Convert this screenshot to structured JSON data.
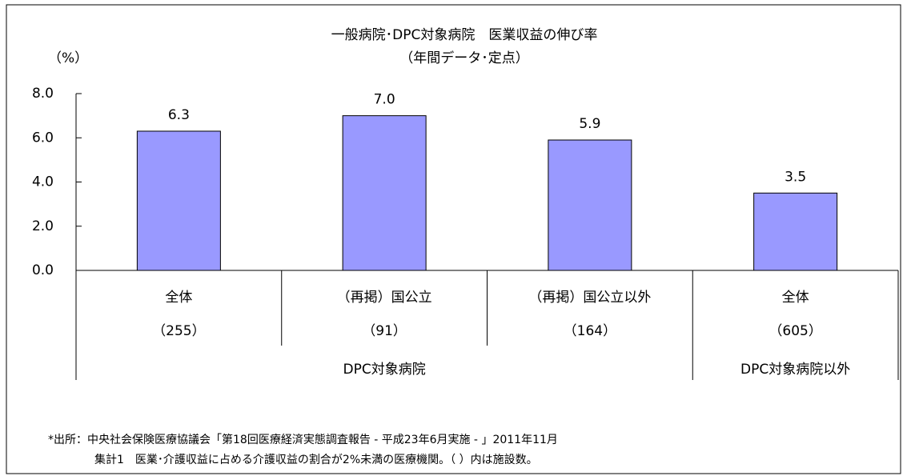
{
  "chart_data": {
    "type": "bar",
    "title": "一般病院･DPC対象病院　医業収益の伸び率",
    "subtitle": "（年間データ･定点）",
    "y_label": "（%）",
    "categories": [
      "全体",
      "（再掲）国公立",
      "（再掲）国公立以外",
      "全体"
    ],
    "counts": [
      "（255）",
      "（91）",
      "（164）",
      "（605）"
    ],
    "groups": [
      "DPC対象病院",
      "DPC対象病院以外"
    ],
    "values": [
      6.3,
      7.0,
      5.9,
      3.5
    ],
    "value_labels": [
      "6.3",
      "7.0",
      "5.9",
      "3.5"
    ],
    "color": "#9999ff",
    "ylim": [
      0,
      8
    ],
    "yticks": [
      {
        "value": 0,
        "label": "0.0"
      },
      {
        "value": 2,
        "label": "2.0"
      },
      {
        "value": 4,
        "label": "4.0"
      },
      {
        "value": 6,
        "label": "6.0"
      },
      {
        "value": 8,
        "label": "8.0"
      }
    ],
    "grid": false,
    "notes": [
      "*出所：中央社会保険医療協議会「第18回医療経済実態調査報告 - 平成23年6月実施 - 」2011年11月",
      "集計1　医業･介護収益に占める介護収益の割合が2%未満の医療機関。（ ）内は施設数。"
    ]
  }
}
